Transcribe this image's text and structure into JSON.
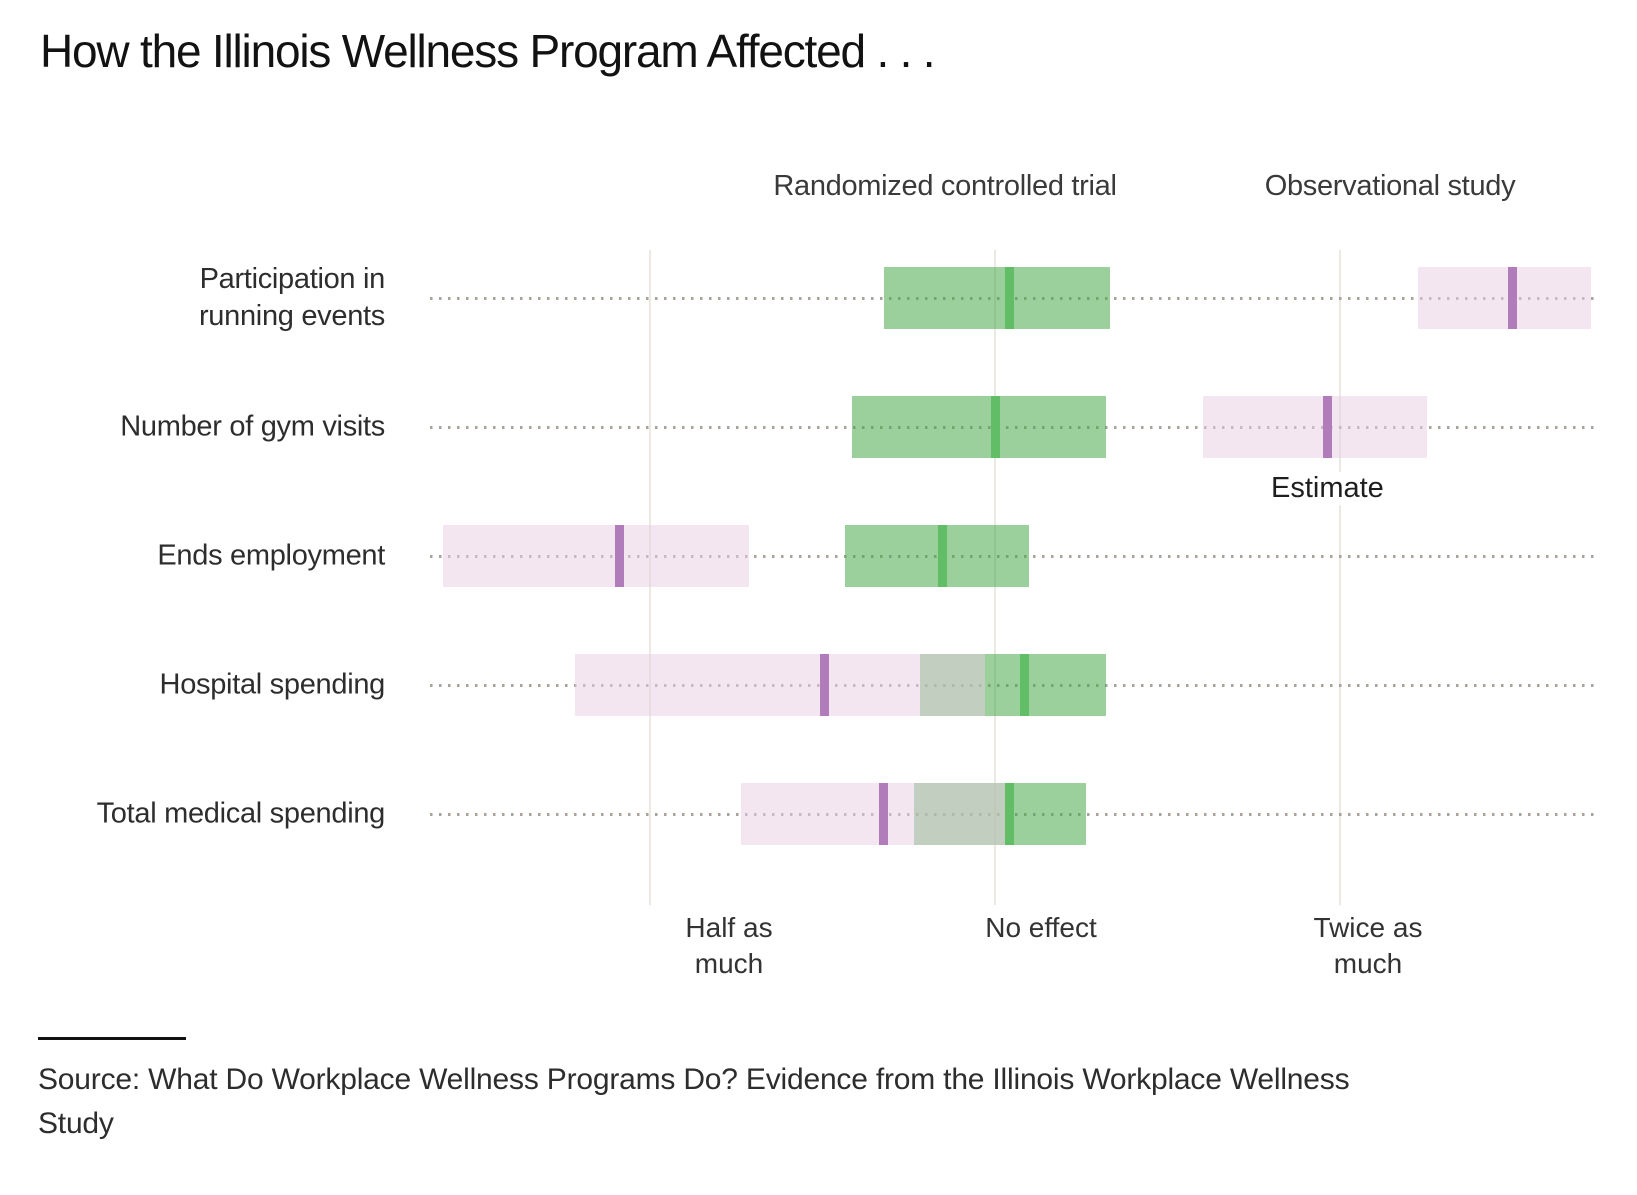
{
  "title": "How the Illinois Wellness Program Affected . . .",
  "source": "Source: What Do Workplace Wellness Programs Do? Evidence from the Illinois Workplace Wellness\nStudy",
  "chart_data": {
    "type": "bar",
    "subtype": "horizontal interval (confidence-range) comparison chart",
    "x_scale": "log2",
    "x_range": [
      0.3,
      3.4
    ],
    "grid": "vertical gridlines at tick values; dotted horizontal baseline per category",
    "x_ticks": [
      {
        "value": 0.5,
        "label": "Half as\nmuch"
      },
      {
        "value": 1,
        "label": "No effect"
      },
      {
        "value": 2,
        "label": "Twice as\nmuch"
      }
    ],
    "categories": [
      "Participation in\nrunning events",
      "Number of gym visits",
      "Ends employment",
      "Hospital spending",
      "Total medical spending"
    ],
    "series": [
      {
        "name": "Randomized controlled trial",
        "bar_color": "rgba(72,168,72,0.55)",
        "estimate_color": "#62bd67",
        "intervals": [
          {
            "low": 0.8,
            "estimate": 1.03,
            "high": 1.26
          },
          {
            "low": 0.75,
            "estimate": 1.0,
            "high": 1.25
          },
          {
            "low": 0.74,
            "estimate": 0.9,
            "high": 1.07
          },
          {
            "low": 0.86,
            "estimate": 1.06,
            "high": 1.25
          },
          {
            "low": 0.85,
            "estimate": 1.03,
            "high": 1.2
          }
        ]
      },
      {
        "name": "Observational study",
        "bar_color": "rgba(233,206,228,0.5)",
        "estimate_color": "#b07cba",
        "intervals": [
          {
            "low": 2.34,
            "estimate": 2.83,
            "high": 3.31
          },
          {
            "low": 1.52,
            "estimate": 1.95,
            "high": 2.38
          },
          {
            "low": 0.33,
            "estimate": 0.47,
            "high": 0.61
          },
          {
            "low": 0.43,
            "estimate": 0.71,
            "high": 0.98
          },
          {
            "low": 0.6,
            "estimate": 0.8,
            "high": 1.02
          }
        ]
      }
    ],
    "annotation": {
      "label": "Estimate",
      "series_index": 1,
      "category_index": 1
    },
    "colors": {
      "gridline": "#ebe9e1",
      "dotted_baseline": "#a8a29a",
      "text": "#2d2d2d",
      "title": "#121212"
    },
    "legend_position": "column headers above each study's bars"
  }
}
